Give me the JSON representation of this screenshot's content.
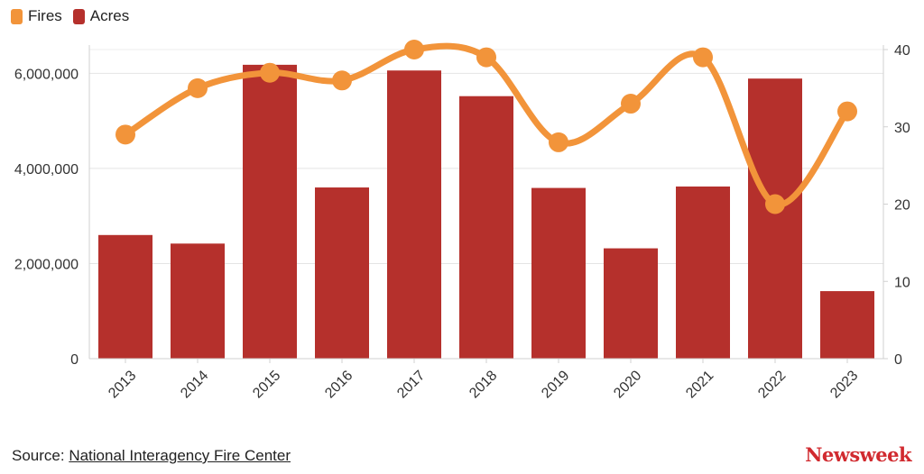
{
  "legend": [
    {
      "name": "Fires",
      "color": "#f2943a"
    },
    {
      "name": "Acres",
      "color": "#b5302c"
    }
  ],
  "chart_data": {
    "type": "bar",
    "categories": [
      "2013",
      "2014",
      "2015",
      "2016",
      "2017",
      "2018",
      "2019",
      "2020",
      "2021",
      "2022",
      "2023"
    ],
    "series": [
      {
        "name": "Acres",
        "type": "bar",
        "axis": "left",
        "values": [
          2600000,
          2420000,
          6180000,
          3600000,
          6060000,
          5520000,
          3590000,
          2320000,
          3620000,
          5890000,
          1420000
        ]
      },
      {
        "name": "Fires",
        "type": "line",
        "axis": "right",
        "values": [
          29,
          35,
          37,
          36,
          40,
          39,
          28,
          33,
          39,
          20,
          32
        ]
      }
    ],
    "y_left": {
      "range": [
        0,
        6500000
      ],
      "ticks": [
        0,
        2000000,
        4000000,
        6000000
      ],
      "tick_labels": [
        "0",
        "2,000,000",
        "4,000,000",
        "6,000,000"
      ]
    },
    "y_right": {
      "range": [
        0,
        40
      ],
      "ticks": [
        0,
        10,
        20,
        30,
        40
      ],
      "tick_labels": [
        "0",
        "10",
        "20",
        "30",
        "40"
      ]
    },
    "grid": true,
    "legend_position": "top-left",
    "colors": {
      "bar": "#b5302c",
      "line": "#f2943a"
    }
  },
  "footer": {
    "source_prefix": "Source: ",
    "source_link": "National Interagency Fire Center",
    "brand": "Newsweek"
  }
}
